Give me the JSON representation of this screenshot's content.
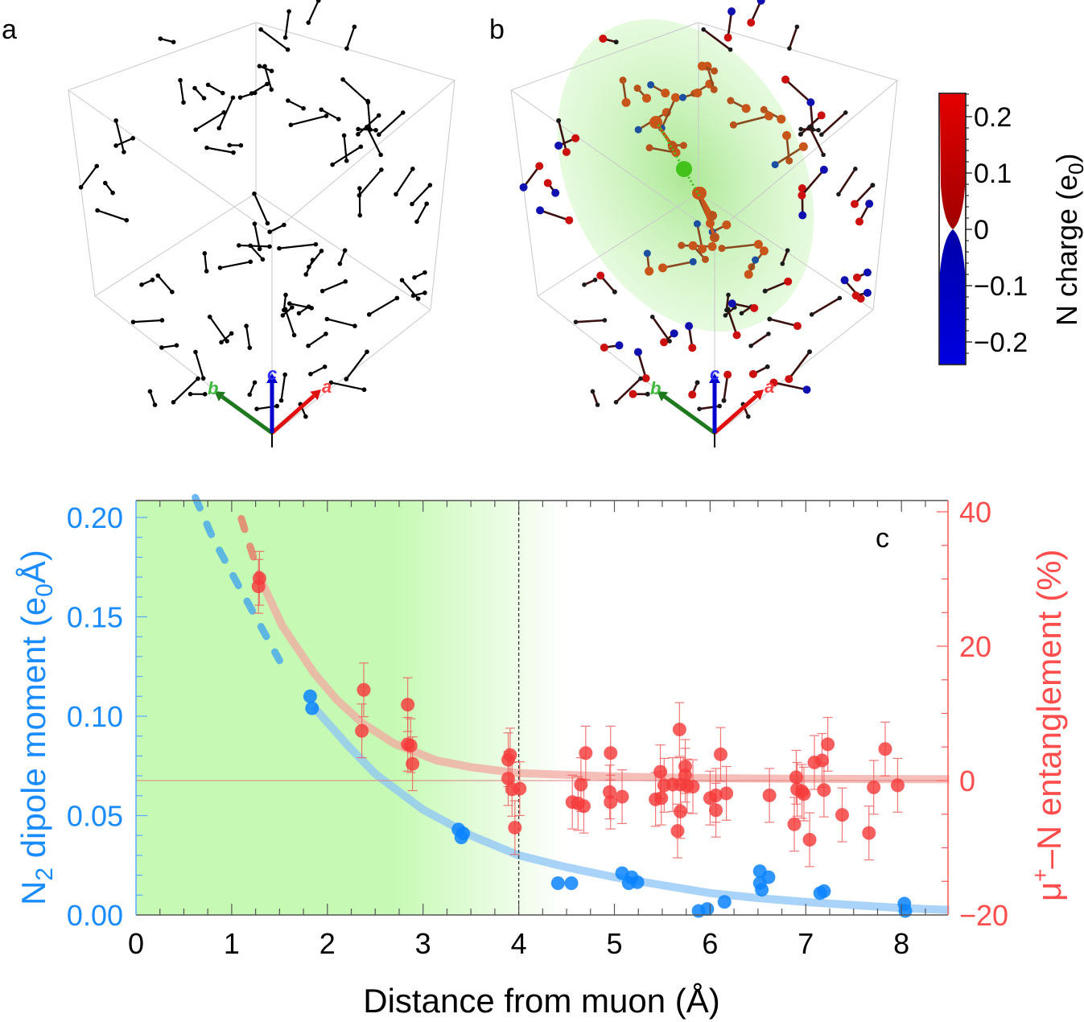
{
  "panels": {
    "a": {
      "label": "a"
    },
    "b": {
      "label": "b"
    },
    "axes_labels": {
      "a": "a",
      "b": "b",
      "c": "c"
    },
    "colorbar": {
      "title": "N charge (e",
      "title_sub": "0",
      "title_end": ")",
      "ticks": [
        "0.2",
        "0.1",
        "0",
        "−0.1",
        "−0.2"
      ],
      "colors": {
        "positive": "#e00000",
        "negative": "#0000d0"
      }
    }
  },
  "chart_data": {
    "type": "scatter",
    "panel_label": "c",
    "xlabel": "Distance from muon (Å)",
    "ylabel_left": "N",
    "ylabel_left_sub": "2",
    "ylabel_left_rest": " dipole moment (e",
    "ylabel_left_sub2": "0",
    "ylabel_left_end": "Å)",
    "ylabel_right": "μ",
    "ylabel_right_sup": "+",
    "ylabel_right_rest": "–N entanglement (%)",
    "xlim": [
      0,
      8.5
    ],
    "ylim_left": [
      0,
      0.21
    ],
    "ylim_right": [
      -20,
      40
    ],
    "x_ticks": [
      "0",
      "1",
      "2",
      "3",
      "4",
      "5",
      "6",
      "7",
      "8"
    ],
    "y_left_ticks": [
      "0.00",
      "0.05",
      "0.10",
      "0.15",
      "0.20"
    ],
    "y_right_ticks": [
      "-20",
      "0",
      "20",
      "40"
    ],
    "vline_x": 4,
    "shaded_region": {
      "solid_until": 2.7,
      "fade_until": 4.5,
      "color": "#c6fab4"
    },
    "colors": {
      "dipole": "#0a84ff",
      "dipole_fit": "#8cc4f5",
      "entanglement": "#f53b3b",
      "entanglement_fit": "#f2a8a0"
    },
    "series": [
      {
        "name": "N2 dipole moment",
        "axis": "left",
        "points": [
          [
            1.82,
            0.11
          ],
          [
            1.84,
            0.104
          ],
          [
            3.37,
            0.043
          ],
          [
            3.4,
            0.039
          ],
          [
            3.42,
            0.041
          ],
          [
            4.41,
            0.016
          ],
          [
            4.55,
            0.016
          ],
          [
            5.08,
            0.021
          ],
          [
            5.15,
            0.016
          ],
          [
            5.18,
            0.019
          ],
          [
            5.24,
            0.0165
          ],
          [
            5.88,
            0.002
          ],
          [
            5.97,
            0.003
          ],
          [
            6.15,
            0.0066
          ],
          [
            6.52,
            0.022
          ],
          [
            6.61,
            0.019
          ],
          [
            6.52,
            0.016
          ],
          [
            6.54,
            0.0127
          ],
          [
            7.15,
            0.011
          ],
          [
            7.19,
            0.012
          ],
          [
            8.03,
            0.0057
          ],
          [
            8.04,
            0.002
          ]
        ]
      },
      {
        "name": "muon-N entanglement",
        "axis": "right",
        "error": 4,
        "points": [
          [
            1.29,
            30.1
          ],
          [
            1.28,
            28.9
          ],
          [
            2.38,
            13.5
          ],
          [
            2.36,
            7.4
          ],
          [
            2.84,
            11.3
          ],
          [
            2.84,
            5.4
          ],
          [
            2.87,
            5.2
          ],
          [
            2.89,
            2.5
          ],
          [
            3.91,
            3.8
          ],
          [
            3.89,
            3.1
          ],
          [
            3.89,
            0.3
          ],
          [
            3.93,
            -1.3
          ],
          [
            4.01,
            -1.2
          ],
          [
            3.96,
            -7.0
          ],
          [
            4.7,
            4.1
          ],
          [
            4.65,
            -0.6
          ],
          [
            4.56,
            -3.2
          ],
          [
            4.68,
            -3.8
          ],
          [
            4.62,
            -3.4
          ],
          [
            4.96,
            4.1
          ],
          [
            4.95,
            -1.7
          ],
          [
            4.96,
            -3.2
          ],
          [
            5.08,
            -2.4
          ],
          [
            5.48,
            1.3
          ],
          [
            5.43,
            -2.8
          ],
          [
            5.49,
            -2.6
          ],
          [
            5.52,
            -0.7
          ],
          [
            5.61,
            -0.6
          ],
          [
            5.68,
            7.6
          ],
          [
            5.74,
            2.1
          ],
          [
            5.74,
            0.8
          ],
          [
            5.69,
            -0.6
          ],
          [
            5.76,
            -0.8
          ],
          [
            5.82,
            -0.9
          ],
          [
            5.69,
            -4.6
          ],
          [
            5.66,
            -7.5
          ],
          [
            6.11,
            3.9
          ],
          [
            6.0,
            -2.6
          ],
          [
            6.06,
            -2.2
          ],
          [
            6.17,
            -1.9
          ],
          [
            6.06,
            -4.4
          ],
          [
            6.62,
            -2.2
          ],
          [
            6.9,
            0.5
          ],
          [
            6.91,
            -1.3
          ],
          [
            6.96,
            -1.6
          ],
          [
            6.98,
            -2.0
          ],
          [
            6.88,
            -6.5
          ],
          [
            7.04,
            -8.8
          ],
          [
            7.09,
            2.7
          ],
          [
            7.17,
            3.0
          ],
          [
            7.23,
            5.4
          ],
          [
            7.19,
            -1.4
          ],
          [
            7.38,
            -5.1
          ],
          [
            7.66,
            -7.8
          ],
          [
            7.71,
            -1.0
          ],
          [
            7.83,
            4.7
          ],
          [
            7.96,
            -0.7
          ]
        ]
      }
    ],
    "fits": [
      {
        "name": "dipole fit",
        "axis": "left",
        "dashed_until": 1.8,
        "points": [
          [
            0.62,
            0.21
          ],
          [
            0.8,
            0.19
          ],
          [
            1.0,
            0.172
          ],
          [
            1.25,
            0.15
          ],
          [
            1.5,
            0.128
          ],
          [
            1.85,
            0.105
          ],
          [
            2.2,
            0.086
          ],
          [
            2.5,
            0.071
          ],
          [
            3.0,
            0.053
          ],
          [
            3.5,
            0.04
          ],
          [
            4.0,
            0.03
          ],
          [
            4.5,
            0.024
          ],
          [
            5.0,
            0.019
          ],
          [
            5.5,
            0.015
          ],
          [
            6.0,
            0.011
          ],
          [
            6.5,
            0.0085
          ],
          [
            7.0,
            0.0065
          ],
          [
            7.5,
            0.005
          ],
          [
            8.0,
            0.0035
          ],
          [
            8.5,
            0.0025
          ]
        ]
      },
      {
        "name": "entanglement fit",
        "axis": "right",
        "dashed_until": 1.3,
        "points": [
          [
            1.1,
            39
          ],
          [
            1.2,
            34.5
          ],
          [
            1.3,
            30
          ],
          [
            1.53,
            23
          ],
          [
            1.86,
            16
          ],
          [
            2.1,
            12
          ],
          [
            2.37,
            8.5
          ],
          [
            2.7,
            5.5
          ],
          [
            3.14,
            3.0
          ],
          [
            3.5,
            2.0
          ],
          [
            4.0,
            1.1
          ],
          [
            5.0,
            0.6
          ],
          [
            6.0,
            0.35
          ],
          [
            7.0,
            0.25
          ],
          [
            8.5,
            0.2
          ]
        ]
      }
    ]
  }
}
